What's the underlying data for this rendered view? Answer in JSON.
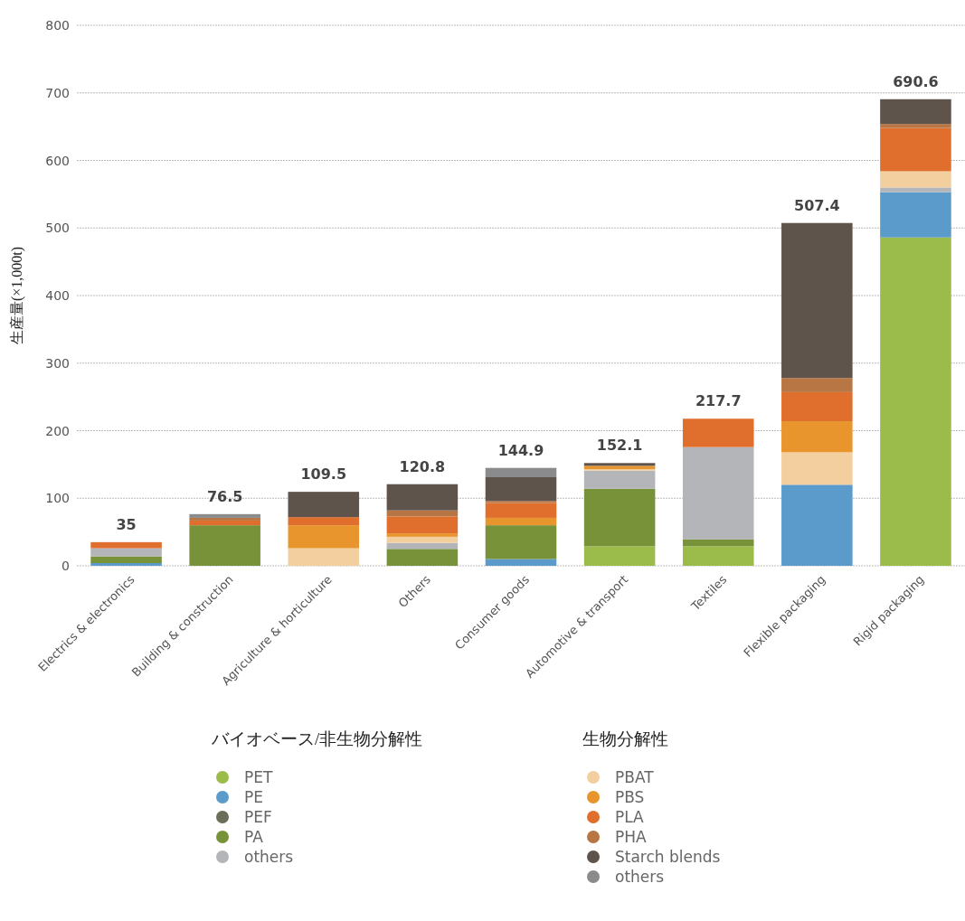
{
  "chart_data": {
    "type": "bar",
    "stacked": true,
    "ylabel": "生産量(×1,000t)",
    "categories": [
      "Electrics & electronics",
      "Building & construction",
      "Agriculture & horticulture",
      "Others",
      "Consumer goods",
      "Automotive & transport",
      "Textiles",
      "Flexible packaging",
      "Rigid packaging"
    ],
    "series": [
      {
        "name": "PET",
        "color": "#9bbb4a",
        "values": [
          0,
          0,
          0,
          0,
          0,
          29,
          29,
          0,
          486
        ]
      },
      {
        "name": "PE",
        "color": "#5a9bcb",
        "values": [
          4,
          0,
          0,
          0,
          10,
          0,
          0,
          120,
          67
        ]
      },
      {
        "name": "PEF",
        "color": "#6b6e58",
        "values": [
          0,
          0,
          0,
          0,
          0,
          0,
          0,
          0,
          0
        ]
      },
      {
        "name": "PA",
        "color": "#78923a",
        "values": [
          10,
          60,
          0,
          25,
          50,
          85,
          10,
          0,
          0
        ]
      },
      {
        "name": "others",
        "color": "#b4b5b8",
        "values": [
          12,
          0,
          0,
          9,
          0,
          27,
          136.7,
          0,
          7
        ]
      },
      {
        "name": "PBAT",
        "color": "#f3cfa0",
        "values": [
          0,
          0,
          26,
          9,
          0,
          2,
          0,
          48,
          24
        ]
      },
      {
        "name": "PBS",
        "color": "#e8952e",
        "values": [
          0,
          0,
          34,
          5,
          11,
          5,
          0,
          46,
          0
        ]
      },
      {
        "name": "PLA",
        "color": "#e06f2e",
        "values": [
          9,
          7,
          12,
          25,
          22,
          0,
          42,
          43,
          64
        ]
      },
      {
        "name": "PHA",
        "color": "#b87645",
        "values": [
          0,
          4,
          0,
          9,
          3,
          0,
          0,
          21,
          6
        ]
      },
      {
        "name": "Starch blends",
        "color": "#5e544c",
        "values": [
          0,
          0,
          37.5,
          38.8,
          36,
          4.1,
          0,
          229.4,
          36.6
        ]
      },
      {
        "name": "others",
        "color": "#8a8b8d",
        "values": [
          0,
          5.5,
          0,
          0,
          12.9,
          0,
          0,
          0,
          0
        ]
      }
    ],
    "totals": [
      "35",
      "76.5",
      "109.5",
      "120.8",
      "144.9",
      "152.1",
      "217.7",
      "507.4",
      "690.6"
    ],
    "legend_title": [
      "バイオベース/非生物分解性",
      "生物分解性"
    ],
    "ylim": [
      0,
      800
    ],
    "yticks": [
      0,
      100,
      200,
      300,
      400,
      500,
      600,
      700,
      800
    ],
    "grid": "y",
    "legend": "bottom"
  }
}
